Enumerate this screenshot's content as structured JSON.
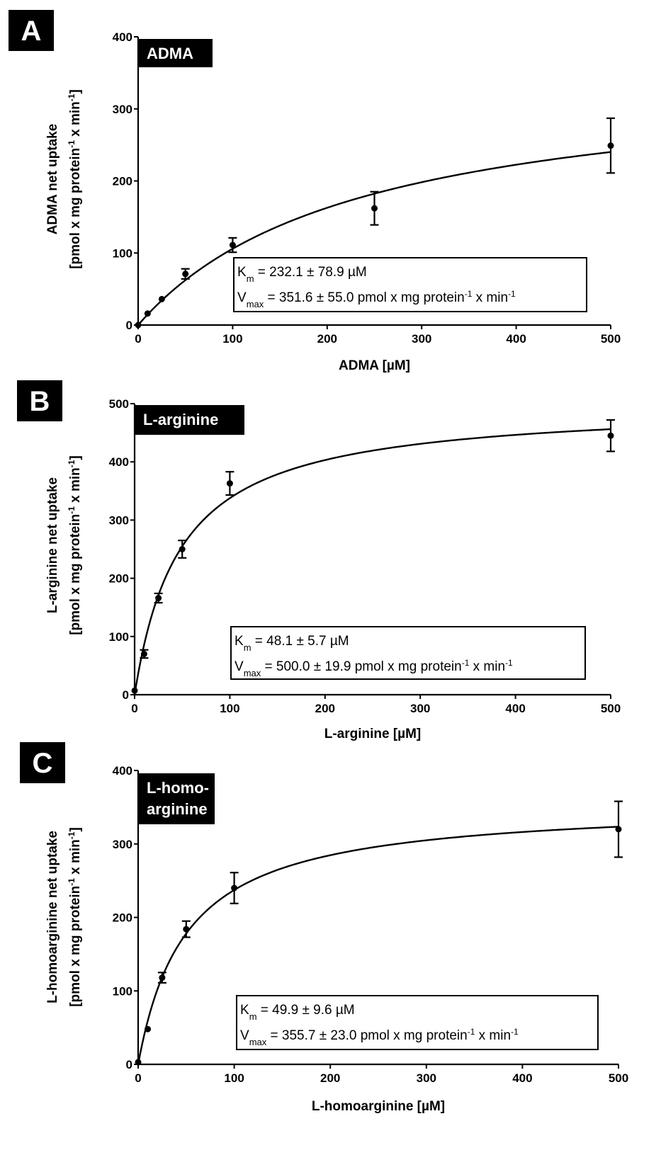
{
  "chart_data": [
    {
      "type": "scatter",
      "panel_label": "A",
      "tag": [
        "ADMA"
      ],
      "xlabel": "ADMA [µM]",
      "ylabel_line1": "ADMA net uptake",
      "ylabel_line2_prefix": "[pmol x mg protein",
      "ylabel_line2_mid": " x min",
      "ylabel_line2_suffix": "]",
      "ylabel_exp": "-1",
      "xlim": [
        0,
        500
      ],
      "ylim": [
        0,
        400
      ],
      "xticks": [
        0,
        100,
        200,
        300,
        400,
        500
      ],
      "yticks": [
        0,
        100,
        200,
        300,
        400
      ],
      "x": [
        0,
        10,
        25,
        50,
        100,
        250,
        500
      ],
      "y": [
        0,
        16,
        36,
        71,
        111,
        162,
        249
      ],
      "yerr": [
        0,
        0,
        0,
        7,
        10,
        23,
        38
      ],
      "fit": {
        "model": "Michaelis-Menten",
        "Km": 232.1,
        "Vmax": 351.6
      },
      "annotation": {
        "km_sym": "K",
        "km_sub": "m",
        "km_text": " = 232.1 ± 78.9 µM",
        "vmax_sym": "V",
        "vmax_sub": "max",
        "vmax_text": " = 351.6 ± 55.0 pmol x mg protein",
        "vmax_mid": " x min",
        "exp": "-1"
      }
    },
    {
      "type": "scatter",
      "panel_label": "B",
      "tag": [
        "L-arginine"
      ],
      "xlabel": "L-arginine [µM]",
      "ylabel_line1": "L-arginine net uptake",
      "ylabel_line2_prefix": "[pmol x mg protein",
      "ylabel_line2_mid": " x min",
      "ylabel_line2_suffix": "]",
      "ylabel_exp": "-1",
      "xlim": [
        0,
        500
      ],
      "ylim": [
        0,
        500
      ],
      "xticks": [
        0,
        100,
        200,
        300,
        400,
        500
      ],
      "yticks": [
        0,
        100,
        200,
        300,
        400,
        500
      ],
      "x": [
        0,
        10,
        25,
        50,
        100,
        500
      ],
      "y": [
        7,
        70,
        166,
        250,
        363,
        445
      ],
      "yerr": [
        0,
        7,
        8,
        15,
        20,
        27
      ],
      "fit": {
        "model": "Michaelis-Menten",
        "Km": 48.1,
        "Vmax": 500.0
      },
      "annotation": {
        "km_sym": "K",
        "km_sub": "m",
        "km_text": " = 48.1 ± 5.7 µM",
        "vmax_sym": "V",
        "vmax_sub": "max",
        "vmax_text": " = 500.0 ± 19.9 pmol x mg protein",
        "vmax_mid": " x min",
        "exp": "-1"
      }
    },
    {
      "type": "scatter",
      "panel_label": "C",
      "tag": [
        "L-homo-",
        "arginine"
      ],
      "xlabel": "L-homoarginine [µM]",
      "ylabel_line1": "L-homoarginine net uptake",
      "ylabel_line2_prefix": "[pmol x mg protein",
      "ylabel_line2_mid": " x min",
      "ylabel_line2_suffix": "]",
      "ylabel_exp": "-1",
      "xlim": [
        0,
        500
      ],
      "ylim": [
        0,
        400
      ],
      "xticks": [
        0,
        100,
        200,
        300,
        400,
        500
      ],
      "yticks": [
        0,
        100,
        200,
        300,
        400
      ],
      "x": [
        0,
        10,
        25,
        50,
        100,
        500
      ],
      "y": [
        3,
        48,
        118,
        184,
        240,
        320
      ],
      "yerr": [
        0,
        0,
        7,
        11,
        21,
        38
      ],
      "fit": {
        "model": "Michaelis-Menten",
        "Km": 49.9,
        "Vmax": 355.7
      },
      "annotation": {
        "km_sym": "K",
        "km_sub": "m",
        "km_text": " = 49.9 ± 9.6 µM",
        "vmax_sym": "V",
        "vmax_sub": "max",
        "vmax_text": " = 355.7 ± 23.0 pmol x mg protein",
        "vmax_mid": " x min",
        "exp": "-1"
      }
    }
  ]
}
